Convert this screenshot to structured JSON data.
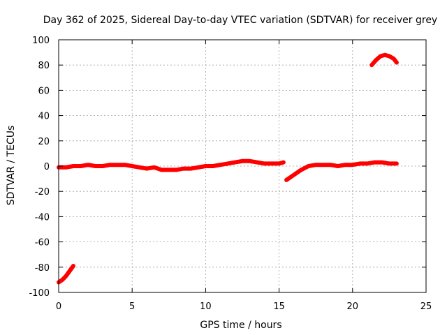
{
  "chart_data": {
    "type": "scatter",
    "title": "Day 362 of 2025, Sidereal Day-to-day VTEC variation (SDTVAR) for receiver grey",
    "xlabel": "GPS time / hours",
    "ylabel": "SDTVAR / TECUs",
    "xlim": [
      0,
      25
    ],
    "ylim": [
      -100,
      100
    ],
    "xticks": [
      0,
      5,
      10,
      15,
      20,
      25
    ],
    "yticks": [
      -100,
      -80,
      -60,
      -40,
      -20,
      0,
      20,
      40,
      60,
      80,
      100
    ],
    "grid": true,
    "series": [
      {
        "name": "SDTVAR",
        "color": "#ff0000",
        "segments": [
          {
            "x": [
              0.0,
              0.25,
              0.5,
              0.75,
              1.0
            ],
            "y": [
              -92,
              -90,
              -87,
              -83,
              -79
            ]
          },
          {
            "x": [
              0.0,
              0.5,
              1.0,
              1.5,
              2.0,
              2.5,
              3.0,
              3.5,
              4.0,
              4.5,
              5.0,
              5.5,
              6.0,
              6.5,
              7.0,
              7.5,
              8.0,
              8.5,
              9.0,
              9.5,
              10.0,
              10.5,
              11.0,
              11.5,
              12.0,
              12.5,
              13.0,
              13.5,
              14.0,
              14.5,
              15.0,
              15.3
            ],
            "y": [
              -1,
              -1,
              0,
              0,
              1,
              0,
              0,
              1,
              1,
              1,
              0,
              -1,
              -2,
              -1,
              -3,
              -3,
              -3,
              -2,
              -2,
              -1,
              0,
              0,
              1,
              2,
              3,
              4,
              4,
              3,
              2,
              2,
              2,
              3
            ]
          },
          {
            "x": [
              15.5,
              16.0,
              16.5,
              17.0,
              17.5,
              18.0,
              18.5,
              19.0,
              19.5,
              20.0,
              20.5,
              21.0,
              21.5,
              22.0,
              22.5,
              23.0
            ],
            "y": [
              -11,
              -7,
              -3,
              0,
              1,
              1,
              1,
              0,
              1,
              1,
              2,
              2,
              3,
              3,
              2,
              2
            ]
          },
          {
            "x": [
              21.3,
              21.6,
              21.9,
              22.2,
              22.5,
              22.8,
              23.0
            ],
            "y": [
              80,
              84,
              87,
              88,
              87,
              85,
              82
            ]
          }
        ]
      }
    ]
  }
}
